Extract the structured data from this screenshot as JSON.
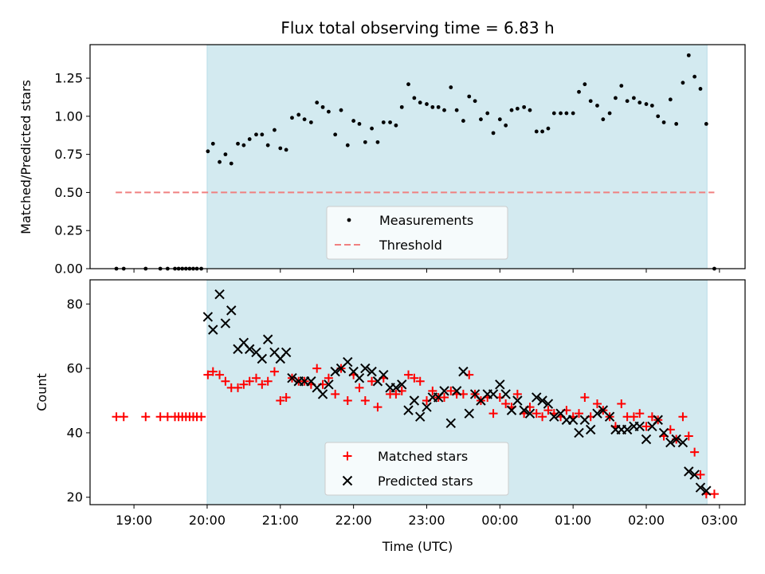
{
  "chart_data": {
    "title": "Flux total observing time = 6.83 h",
    "xlabel": "Time (UTC)",
    "x_unit": "hours (UTC)",
    "xlim": [
      18.4,
      27.35
    ],
    "x_ticks": [
      {
        "value": 19,
        "label": "19:00"
      },
      {
        "value": 20,
        "label": "20:00"
      },
      {
        "value": 21,
        "label": "21:00"
      },
      {
        "value": 22,
        "label": "22:00"
      },
      {
        "value": 23,
        "label": "23:00"
      },
      {
        "value": 24,
        "label": "00:00"
      },
      {
        "value": 25,
        "label": "01:00"
      },
      {
        "value": 26,
        "label": "02:00"
      },
      {
        "value": 27,
        "label": "03:00"
      }
    ],
    "shaded_span": {
      "start": 20.0,
      "end": 26.83,
      "color": "#d3eaf0"
    },
    "panels": [
      {
        "type": "scatter",
        "ylabel": "Matched/Predicted stars",
        "ylim": [
          0,
          1.47
        ],
        "y_ticks": [
          {
            "value": 0.0,
            "label": "0.00"
          },
          {
            "value": 0.25,
            "label": "0.25"
          },
          {
            "value": 0.5,
            "label": "0.50"
          },
          {
            "value": 0.75,
            "label": "0.75"
          },
          {
            "value": 1.0,
            "label": "1.00"
          },
          {
            "value": 1.25,
            "label": "1.25"
          }
        ],
        "legend": {
          "placement": "lower-center",
          "entries": [
            "Measurements",
            "Threshold"
          ]
        },
        "threshold": {
          "name": "Threshold",
          "value": 0.5,
          "x_start": 18.75,
          "x_end": 26.93,
          "color": "#f08080",
          "style": "dashed"
        },
        "series": [
          {
            "name": "Measurements",
            "marker": "dot",
            "color": "#000000",
            "x": [
              18.76,
              18.86,
              19.16,
              19.36,
              19.46,
              19.56,
              19.61,
              19.66,
              19.71,
              19.76,
              19.81,
              19.86,
              19.92,
              20.01,
              20.08,
              20.17,
              20.25,
              20.33,
              20.42,
              20.5,
              20.58,
              20.67,
              20.75,
              20.83,
              20.92,
              21.0,
              21.08,
              21.16,
              21.25,
              21.33,
              21.42,
              21.5,
              21.58,
              21.66,
              21.75,
              21.83,
              21.92,
              22.0,
              22.08,
              22.16,
              22.25,
              22.33,
              22.41,
              22.5,
              22.58,
              22.66,
              22.75,
              22.83,
              22.91,
              23.0,
              23.08,
              23.16,
              23.24,
              23.33,
              23.41,
              23.5,
              23.58,
              23.66,
              23.74,
              23.83,
              23.91,
              24.0,
              24.08,
              24.16,
              24.24,
              24.33,
              24.41,
              24.5,
              24.58,
              24.66,
              24.74,
              24.83,
              24.91,
              25.0,
              25.08,
              25.16,
              25.24,
              25.33,
              25.41,
              25.5,
              25.58,
              25.66,
              25.74,
              25.83,
              25.91,
              26.0,
              26.08,
              26.16,
              26.24,
              26.33,
              26.41,
              26.5,
              26.58,
              26.66,
              26.74,
              26.82,
              26.93
            ],
            "y": [
              0,
              0,
              0,
              0,
              0,
              0,
              0,
              0,
              0,
              0,
              0,
              0,
              0,
              0.77,
              0.82,
              0.7,
              0.75,
              0.69,
              0.82,
              0.81,
              0.85,
              0.88,
              0.88,
              0.81,
              0.91,
              0.79,
              0.78,
              0.99,
              1.01,
              0.98,
              0.96,
              1.09,
              1.06,
              1.03,
              0.88,
              1.04,
              0.81,
              0.97,
              0.95,
              0.83,
              0.92,
              0.83,
              0.96,
              0.96,
              0.94,
              1.06,
              1.21,
              1.12,
              1.09,
              1.08,
              1.06,
              1.06,
              1.04,
              1.19,
              1.04,
              0.97,
              1.13,
              1.1,
              0.98,
              1.02,
              0.89,
              0.98,
              0.94,
              1.04,
              1.05,
              1.06,
              1.04,
              0.9,
              0.9,
              0.92,
              1.02,
              1.02,
              1.02,
              1.02,
              1.16,
              1.21,
              1.1,
              1.07,
              0.98,
              1.02,
              1.12,
              1.2,
              1.1,
              1.12,
              1.09,
              1.08,
              1.07,
              1.0,
              0.96,
              1.11,
              0.95,
              1.22,
              1.4,
              1.26,
              1.18,
              0.95,
              0
            ]
          }
        ]
      },
      {
        "type": "scatter",
        "ylabel": "Count",
        "ylim": [
          17.7,
          87.5
        ],
        "y_ticks": [
          {
            "value": 20,
            "label": "20"
          },
          {
            "value": 40,
            "label": "40"
          },
          {
            "value": 60,
            "label": "60"
          },
          {
            "value": 80,
            "label": "80"
          }
        ],
        "legend": {
          "placement": "lower-center",
          "entries": [
            "Matched stars",
            "Predicted stars"
          ]
        },
        "series": [
          {
            "name": "Matched stars",
            "marker": "plus",
            "color": "#ff0000",
            "x": [
              18.76,
              18.86,
              19.16,
              19.36,
              19.46,
              19.56,
              19.61,
              19.66,
              19.71,
              19.76,
              19.81,
              19.86,
              19.92,
              20.01,
              20.08,
              20.17,
              20.25,
              20.33,
              20.42,
              20.5,
              20.58,
              20.67,
              20.75,
              20.83,
              20.92,
              21.0,
              21.08,
              21.16,
              21.25,
              21.33,
              21.42,
              21.5,
              21.58,
              21.66,
              21.75,
              21.83,
              21.92,
              22.0,
              22.08,
              22.16,
              22.25,
              22.33,
              22.41,
              22.5,
              22.58,
              22.66,
              22.75,
              22.83,
              22.91,
              23.0,
              23.08,
              23.16,
              23.24,
              23.33,
              23.41,
              23.5,
              23.58,
              23.66,
              23.74,
              23.83,
              23.91,
              24.0,
              24.08,
              24.16,
              24.24,
              24.33,
              24.41,
              24.5,
              24.58,
              24.66,
              24.74,
              24.83,
              24.91,
              25.0,
              25.08,
              25.16,
              25.24,
              25.33,
              25.41,
              25.5,
              25.58,
              25.66,
              25.74,
              25.83,
              25.91,
              26.0,
              26.08,
              26.16,
              26.24,
              26.33,
              26.41,
              26.5,
              26.58,
              26.66,
              26.74,
              26.82,
              26.93
            ],
            "y": [
              45,
              45,
              45,
              45,
              45,
              45,
              45,
              45,
              45,
              45,
              45,
              45,
              45,
              58,
              59,
              58,
              56,
              54,
              54,
              55,
              56,
              57,
              55,
              56,
              59,
              50,
              51,
              57,
              56,
              56,
              55,
              60,
              55,
              57,
              52,
              60,
              50,
              58,
              54,
              50,
              56,
              48,
              57,
              52,
              52,
              53,
              58,
              57,
              56,
              50,
              53,
              51,
              51,
              53,
              52,
              52,
              58,
              52,
              50,
              51,
              46,
              51,
              49,
              48,
              52,
              46,
              48,
              46,
              45,
              47,
              46,
              45,
              47,
              45,
              46,
              51,
              45,
              49,
              47,
              45,
              42,
              49,
              45,
              45,
              46,
              42,
              45,
              44,
              39,
              41,
              38,
              45,
              39,
              34,
              27,
              21,
              21
            ]
          },
          {
            "name": "Predicted stars",
            "marker": "x",
            "color": "#000000",
            "x": [
              20.01,
              20.08,
              20.17,
              20.25,
              20.33,
              20.42,
              20.5,
              20.58,
              20.67,
              20.75,
              20.83,
              20.92,
              21.0,
              21.08,
              21.16,
              21.25,
              21.33,
              21.42,
              21.5,
              21.58,
              21.66,
              21.75,
              21.83,
              21.92,
              22.0,
              22.08,
              22.16,
              22.25,
              22.33,
              22.41,
              22.5,
              22.58,
              22.66,
              22.75,
              22.83,
              22.91,
              23.0,
              23.08,
              23.16,
              23.24,
              23.33,
              23.41,
              23.5,
              23.58,
              23.66,
              23.74,
              23.83,
              23.91,
              24.0,
              24.08,
              24.16,
              24.24,
              24.33,
              24.41,
              24.5,
              24.58,
              24.66,
              24.74,
              24.83,
              24.91,
              25.0,
              25.08,
              25.16,
              25.24,
              25.33,
              25.41,
              25.5,
              25.58,
              25.66,
              25.74,
              25.83,
              25.91,
              26.0,
              26.08,
              26.16,
              26.24,
              26.33,
              26.41,
              26.5,
              26.58,
              26.66,
              26.74,
              26.82
            ],
            "y": [
              76,
              72,
              83,
              74,
              78,
              66,
              68,
              66,
              65,
              63,
              69,
              65,
              63,
              65,
              57,
              56,
              56,
              56,
              54,
              52,
              55,
              59,
              60,
              62,
              59,
              57,
              60,
              59,
              56,
              58,
              54,
              54,
              55,
              47,
              50,
              45,
              48,
              51,
              51,
              53,
              43,
              53,
              59,
              46,
              52,
              50,
              52,
              52,
              55,
              52,
              47,
              50,
              47,
              46,
              51,
              50,
              49,
              45,
              46,
              44,
              44,
              40,
              44,
              41,
              46,
              47,
              45,
              41,
              41,
              41,
              42,
              42,
              38,
              42,
              44,
              40,
              37,
              38,
              37,
              28,
              27,
              23,
              22
            ]
          }
        ]
      }
    ]
  }
}
